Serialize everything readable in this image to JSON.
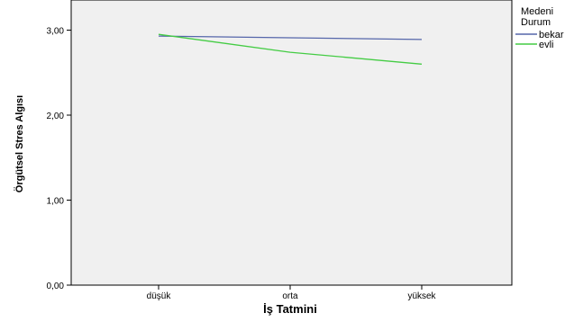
{
  "chart_data": {
    "type": "line",
    "xlabel": "İş Tatmini",
    "ylabel": "Örgütsel Stres Algısı",
    "categories": [
      "düşük",
      "orta",
      "yüksek"
    ],
    "yticks": [
      "0,00",
      "1,00",
      "2,00",
      "3,00"
    ],
    "ylim": [
      0,
      3.3
    ],
    "grid": false,
    "legend_title_lines": [
      "Medeni",
      "Durum"
    ],
    "legend_position": "right",
    "series": [
      {
        "name": "bekar",
        "color": "#5566aa",
        "values": [
          2.93,
          2.91,
          2.89
        ]
      },
      {
        "name": "evli",
        "color": "#44cc44",
        "values": [
          2.95,
          2.74,
          2.6
        ]
      }
    ]
  }
}
